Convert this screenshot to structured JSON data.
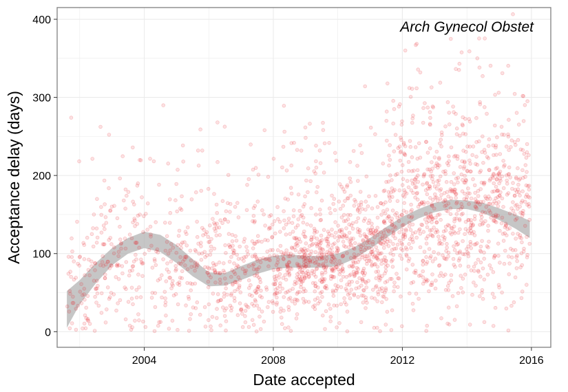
{
  "chart_data": {
    "type": "scatter",
    "title": "",
    "annotation": "Arch Gynecol Obstet",
    "xlabel": "Date accepted",
    "ylabel": "Acceptance delay (days)",
    "xlim": [
      2001.3,
      2016.6
    ],
    "ylim": [
      -20,
      415
    ],
    "x_ticks": [
      2004,
      2008,
      2012,
      2016
    ],
    "x_tick_labels": [
      "2004",
      "2008",
      "2012",
      "2016"
    ],
    "y_ticks": [
      0,
      100,
      200,
      300,
      400
    ],
    "y_tick_labels": [
      "0",
      "100",
      "200",
      "300",
      "400"
    ],
    "grid": true,
    "colors": {
      "points": "#e8202a",
      "smooth_band": "#b3b3b3",
      "panel_border": "#7f7f7f",
      "grid": "#ebebeb"
    },
    "smooth_band": {
      "x": [
        2001.6,
        2002.0,
        2002.5,
        2003.0,
        2003.5,
        2004.0,
        2004.5,
        2005.0,
        2005.5,
        2006.0,
        2006.5,
        2007.0,
        2007.5,
        2008.0,
        2008.5,
        2009.0,
        2009.5,
        2010.0,
        2010.5,
        2011.0,
        2011.5,
        2012.0,
        2012.5,
        2013.0,
        2013.5,
        2014.0,
        2014.5,
        2015.0,
        2015.5,
        2015.95
      ],
      "lower": [
        5,
        35,
        62,
        85,
        100,
        107,
        102,
        88,
        71,
        58,
        59,
        66,
        74,
        80,
        82,
        82,
        82,
        84,
        93,
        106,
        120,
        134,
        145,
        153,
        157,
        157,
        152,
        143,
        132,
        120
      ],
      "upper": [
        52,
        66,
        88,
        107,
        120,
        128,
        124,
        111,
        93,
        76,
        75,
        84,
        92,
        97,
        99,
        97,
        97,
        100,
        108,
        120,
        134,
        147,
        157,
        165,
        169,
        168,
        165,
        158,
        150,
        142
      ]
    },
    "point_clusters": [
      {
        "x_range": [
          2001.6,
          2002.5
        ],
        "center": 55,
        "spread": 55,
        "count": 70
      },
      {
        "x_range": [
          2002.5,
          2004.0
        ],
        "center": 95,
        "spread": 70,
        "count": 140
      },
      {
        "x_range": [
          2004.0,
          2006.0
        ],
        "center": 85,
        "spread": 65,
        "count": 170
      },
      {
        "x_range": [
          2006.0,
          2008.0
        ],
        "center": 80,
        "spread": 55,
        "count": 260
      },
      {
        "x_range": [
          2008.0,
          2010.0
        ],
        "center": 90,
        "spread": 50,
        "count": 420
      },
      {
        "x_range": [
          2010.0,
          2011.5
        ],
        "center": 100,
        "spread": 55,
        "count": 330
      },
      {
        "x_range": [
          2011.5,
          2013.5
        ],
        "center": 150,
        "spread": 80,
        "count": 430
      },
      {
        "x_range": [
          2013.5,
          2015.95
        ],
        "center": 155,
        "spread": 80,
        "count": 480
      }
    ],
    "n_points_approx": 2300
  }
}
